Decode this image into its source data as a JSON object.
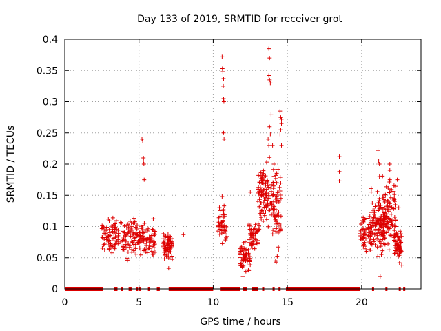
{
  "chart_data": {
    "type": "scatter",
    "title": "Day 133 of 2019, SRMTID for receiver grot",
    "xlabel": "GPS time / hours",
    "ylabel": "SRMTID / TECUs",
    "xlim": [
      0,
      24
    ],
    "ylim": [
      0,
      0.4
    ],
    "x_ticks": [
      0,
      5,
      10,
      15,
      20
    ],
    "y_ticks": [
      0,
      0.05,
      0.1,
      0.15,
      0.2,
      0.25,
      0.3,
      0.35,
      0.4
    ],
    "x_tick_labels": [
      "0",
      "5",
      "10",
      "15",
      "20"
    ],
    "y_tick_labels": [
      "0",
      "0.05",
      "0.1",
      "0.15",
      "0.2",
      "0.25",
      "0.3",
      "0.35",
      "0.4"
    ],
    "grid": true,
    "marker": "+",
    "colors": {
      "series": "#dd0000",
      "grid": "#a0a0a0",
      "axis": "#000000"
    },
    "zero_segments": [
      [
        0.0,
        2.6
      ],
      [
        3.3,
        3.55
      ],
      [
        3.8,
        3.9
      ],
      [
        4.3,
        4.5
      ],
      [
        4.8,
        4.9
      ],
      [
        5.0,
        5.1
      ],
      [
        5.6,
        5.7
      ],
      [
        6.2,
        6.4
      ],
      [
        7.0,
        10.0
      ],
      [
        10.5,
        11.8
      ],
      [
        12.0,
        12.3
      ],
      [
        12.6,
        13.0
      ],
      [
        13.3,
        13.4
      ],
      [
        14.0,
        14.1
      ],
      [
        14.4,
        14.5
      ],
      [
        14.9,
        19.9
      ],
      [
        20.7,
        20.8
      ],
      [
        21.6,
        21.7
      ],
      [
        22.5,
        22.6
      ],
      [
        22.8,
        22.9
      ]
    ],
    "clusters": [
      {
        "x_range": [
          2.5,
          5.1
        ],
        "y_range": [
          0.04,
          0.125
        ],
        "count": 170
      },
      {
        "x_range": [
          5.1,
          6.1
        ],
        "y_range": [
          0.04,
          0.12
        ],
        "count": 70
      },
      {
        "x_range": [
          6.6,
          7.3
        ],
        "y_range": [
          0.035,
          0.1
        ],
        "count": 70
      },
      {
        "x_range": [
          10.3,
          11.0
        ],
        "y_range": [
          0.065,
          0.145
        ],
        "count": 50
      },
      {
        "x_range": [
          11.8,
          12.5
        ],
        "y_range": [
          0.02,
          0.08
        ],
        "count": 55
      },
      {
        "x_range": [
          12.4,
          13.1
        ],
        "y_range": [
          0.05,
          0.12
        ],
        "count": 55
      },
      {
        "x_range": [
          13.0,
          14.1
        ],
        "y_range": [
          0.08,
          0.22
        ],
        "count": 110
      },
      {
        "x_range": [
          14.0,
          14.6
        ],
        "y_range": [
          0.04,
          0.22
        ],
        "count": 60
      },
      {
        "x_range": [
          19.9,
          20.7
        ],
        "y_range": [
          0.05,
          0.13
        ],
        "count": 70
      },
      {
        "x_range": [
          20.6,
          21.6
        ],
        "y_range": [
          0.04,
          0.17
        ],
        "count": 120
      },
      {
        "x_range": [
          21.4,
          22.3
        ],
        "y_range": [
          0.05,
          0.19
        ],
        "count": 100
      },
      {
        "x_range": [
          22.2,
          22.7
        ],
        "y_range": [
          0.04,
          0.1
        ],
        "count": 55
      }
    ],
    "points": [
      [
        5.2,
        0.24
      ],
      [
        5.25,
        0.237
      ],
      [
        5.3,
        0.21
      ],
      [
        5.3,
        0.205
      ],
      [
        5.33,
        0.2
      ],
      [
        5.35,
        0.175
      ],
      [
        7.0,
        0.033
      ],
      [
        8.0,
        0.087
      ],
      [
        10.6,
        0.372
      ],
      [
        10.62,
        0.353
      ],
      [
        10.65,
        0.348
      ],
      [
        10.7,
        0.337
      ],
      [
        10.68,
        0.325
      ],
      [
        10.7,
        0.305
      ],
      [
        10.72,
        0.3
      ],
      [
        10.7,
        0.25
      ],
      [
        10.73,
        0.24
      ],
      [
        10.6,
        0.148
      ],
      [
        12.0,
        0.02
      ],
      [
        12.2,
        0.028
      ],
      [
        12.5,
        0.155
      ],
      [
        13.75,
        0.385
      ],
      [
        13.8,
        0.37
      ],
      [
        13.75,
        0.342
      ],
      [
        13.8,
        0.335
      ],
      [
        13.85,
        0.33
      ],
      [
        13.9,
        0.28
      ],
      [
        13.8,
        0.26
      ],
      [
        13.85,
        0.248
      ],
      [
        13.7,
        0.24
      ],
      [
        13.75,
        0.23
      ],
      [
        14.0,
        0.23
      ],
      [
        14.1,
        0.2
      ],
      [
        14.2,
        0.177
      ],
      [
        14.5,
        0.285
      ],
      [
        14.55,
        0.275
      ],
      [
        14.6,
        0.272
      ],
      [
        14.6,
        0.265
      ],
      [
        14.55,
        0.255
      ],
      [
        14.5,
        0.248
      ],
      [
        14.6,
        0.23
      ],
      [
        14.2,
        0.045
      ],
      [
        14.25,
        0.043
      ],
      [
        18.5,
        0.212
      ],
      [
        18.5,
        0.188
      ],
      [
        18.5,
        0.173
      ],
      [
        21.1,
        0.222
      ],
      [
        21.15,
        0.205
      ],
      [
        21.2,
        0.2
      ],
      [
        21.2,
        0.18
      ],
      [
        21.9,
        0.2
      ],
      [
        21.9,
        0.19
      ],
      [
        21.9,
        0.175
      ],
      [
        21.25,
        0.02
      ],
      [
        22.7,
        0.038
      ],
      [
        22.4,
        0.175
      ],
      [
        22.5,
        0.13
      ]
    ]
  }
}
